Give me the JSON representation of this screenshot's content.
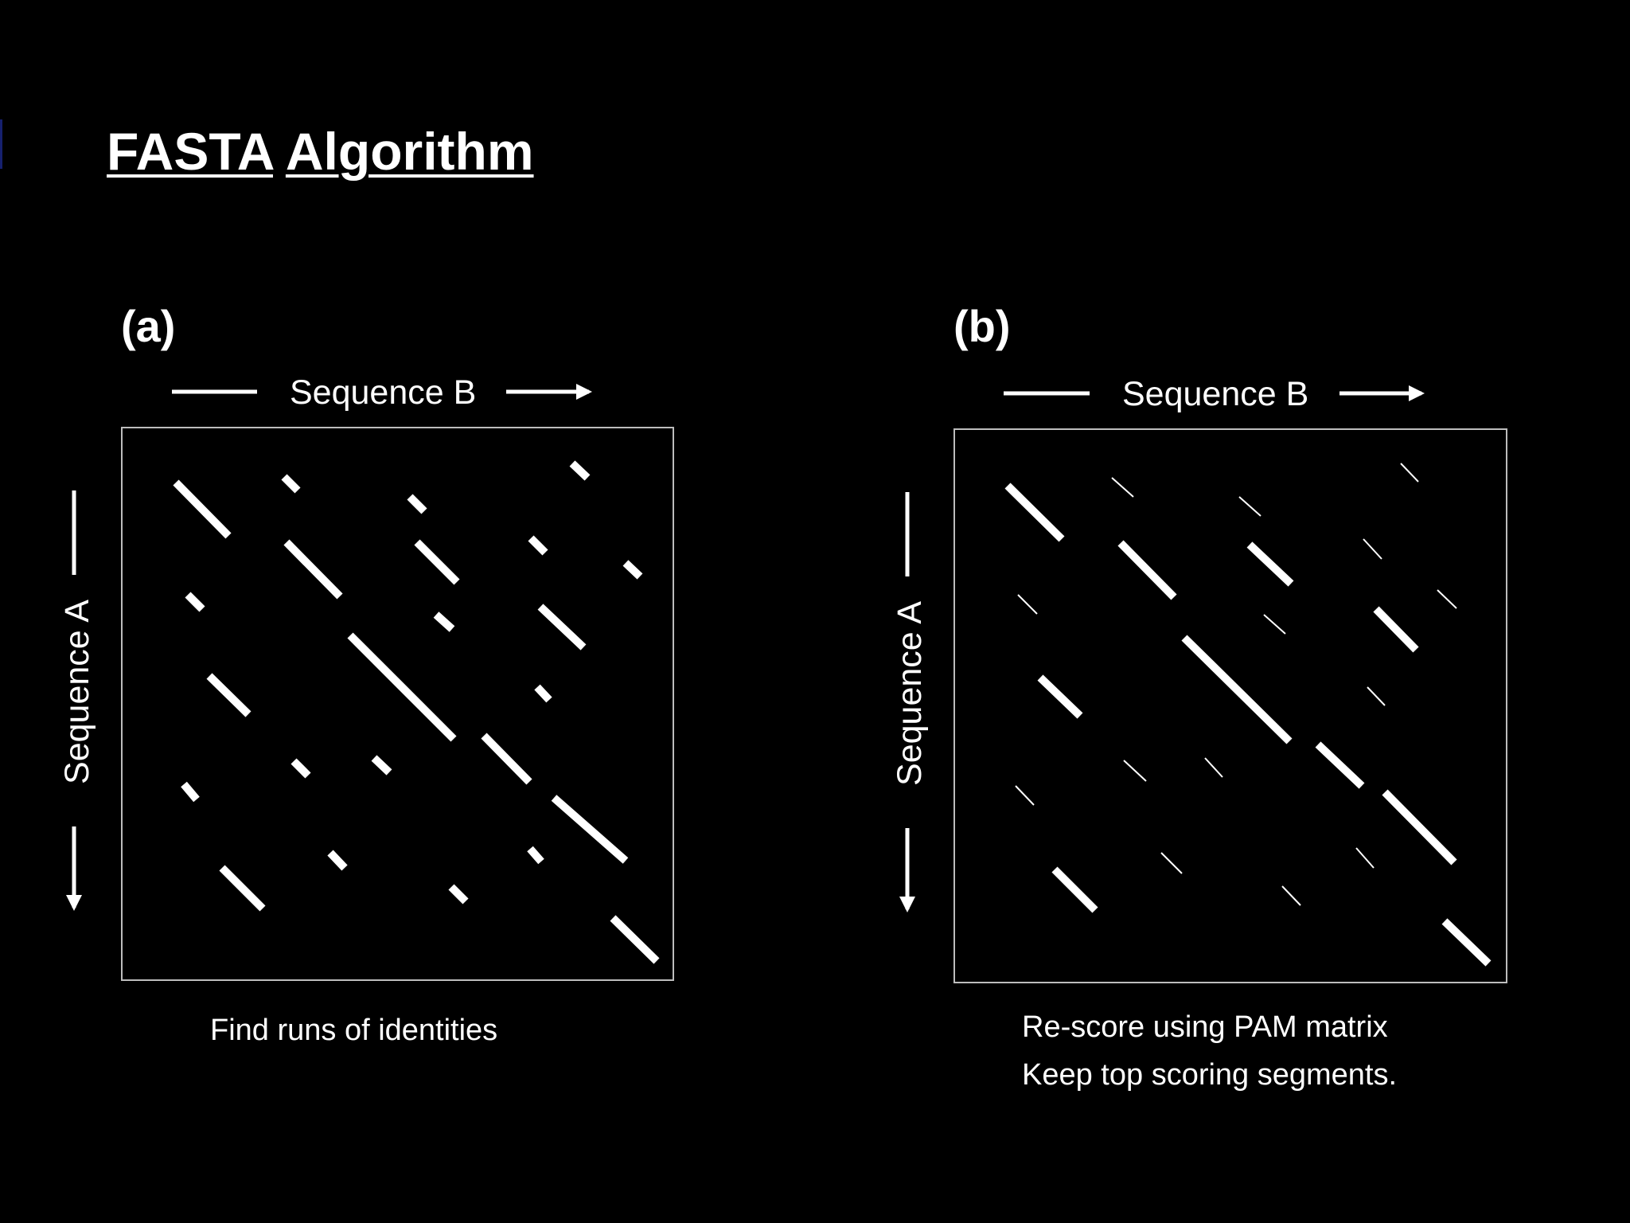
{
  "title": {
    "word1": "FASTA",
    "word2": "Algorithm"
  },
  "panels": [
    {
      "label": "(a)",
      "x_axis": "Sequence B",
      "y_axis": "Sequence A",
      "caption": [
        "Find runs of identities"
      ],
      "segment_style": "uniform"
    },
    {
      "label": "(b)",
      "x_axis": "Sequence B",
      "y_axis": "Sequence A",
      "caption": [
        "Re-score using PAM matrix",
        "Keep top scoring segments."
      ],
      "segment_style": "weighted"
    }
  ],
  "colors": {
    "background": "#000000",
    "foreground": "#ffffff",
    "frame": "#bdbdbd",
    "accent_bar": "#16206e"
  }
}
